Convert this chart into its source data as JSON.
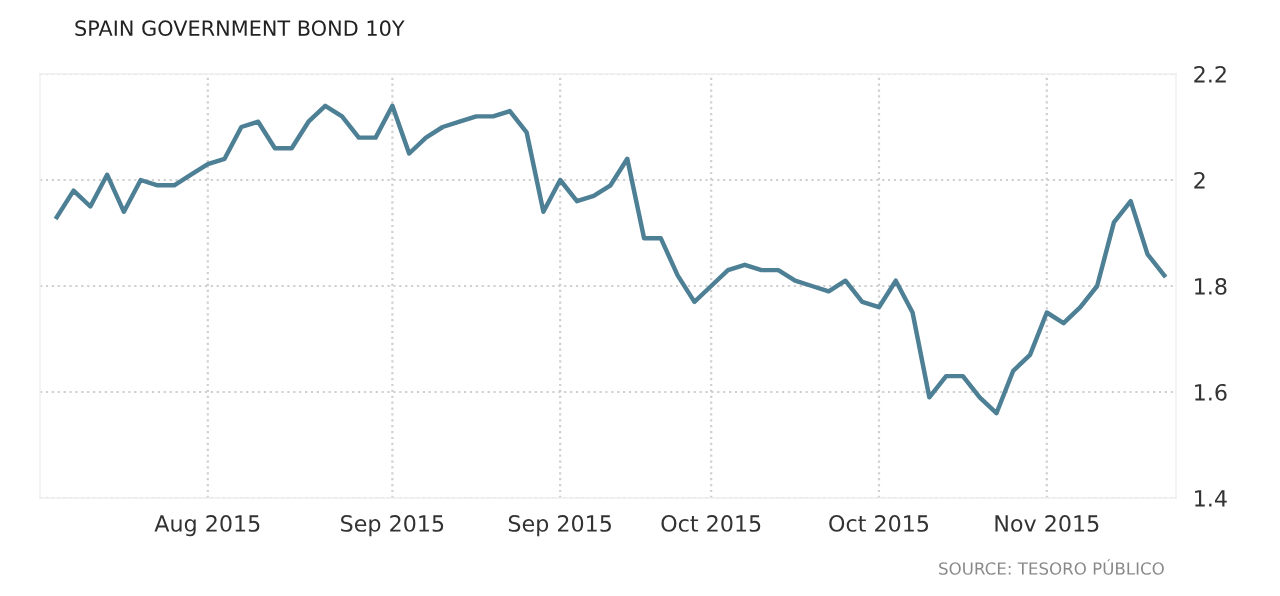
{
  "chart_data": {
    "type": "line",
    "title": "SPAIN GOVERNMENT BOND 10Y",
    "annotations": [
      "SOURCE: TESORO PÚBLICO"
    ],
    "categories": [
      null,
      null,
      null,
      null,
      null,
      null,
      null,
      null,
      null,
      "Aug 2015",
      null,
      null,
      null,
      null,
      null,
      null,
      null,
      null,
      null,
      null,
      "Sep 2015",
      null,
      null,
      null,
      null,
      null,
      null,
      null,
      null,
      null,
      "Sep 2015",
      null,
      null,
      null,
      null,
      null,
      null,
      null,
      null,
      "Oct 2015",
      null,
      null,
      null,
      null,
      null,
      null,
      null,
      null,
      null,
      "Oct 2015",
      null,
      null,
      null,
      null,
      null,
      null,
      null,
      null,
      null,
      "Nov 2015",
      null,
      null,
      null,
      null,
      null,
      null,
      null
    ],
    "series": [
      {
        "color": "#4d7f95",
        "values": [
          1.93,
          1.98,
          1.95,
          2.01,
          1.94,
          2.0,
          1.99,
          1.99,
          2.01,
          2.03,
          2.04,
          2.1,
          2.11,
          2.06,
          2.06,
          2.11,
          2.14,
          2.12,
          2.08,
          2.08,
          2.14,
          2.05,
          2.08,
          2.1,
          2.11,
          2.12,
          2.12,
          2.13,
          2.09,
          1.94,
          2.0,
          1.96,
          1.97,
          1.99,
          2.04,
          1.89,
          1.89,
          1.82,
          1.77,
          1.8,
          1.83,
          1.84,
          1.83,
          1.83,
          1.81,
          1.8,
          1.79,
          1.81,
          1.77,
          1.76,
          1.81,
          1.75,
          1.59,
          1.63,
          1.63,
          1.59,
          1.56,
          1.64,
          1.67,
          1.75,
          1.73,
          1.76,
          1.8,
          1.92,
          1.96,
          1.86,
          1.82
        ]
      }
    ],
    "ylim": [
      1.4,
      2.2
    ],
    "yticks": [
      1.4,
      1.6,
      1.8,
      2,
      2.2
    ],
    "grid": true,
    "marker": "none",
    "line_style": "solid"
  }
}
